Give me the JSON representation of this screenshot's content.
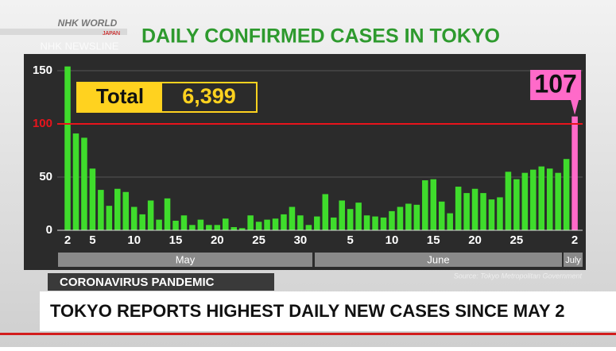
{
  "header": {
    "brand": "NHK WORLD",
    "brand_sub": "JAPAN",
    "program": "NHK NEWSLINE"
  },
  "chart_data": {
    "type": "bar",
    "title": "DAILY CONFIRMED CASES IN TOKYO",
    "categories": [
      "2",
      null,
      null,
      "5",
      null,
      null,
      null,
      null,
      "10",
      null,
      null,
      null,
      null,
      "15",
      null,
      null,
      null,
      null,
      "20",
      null,
      null,
      null,
      null,
      "25",
      null,
      null,
      null,
      null,
      "30",
      null,
      null,
      null,
      null,
      null,
      "5",
      null,
      null,
      null,
      null,
      "10",
      null,
      null,
      null,
      null,
      "15",
      null,
      null,
      null,
      null,
      "20",
      null,
      null,
      null,
      null,
      "25",
      null,
      null,
      null,
      null,
      null,
      null,
      "2"
    ],
    "values": [
      154,
      91,
      87,
      58,
      38,
      23,
      39,
      36,
      22,
      15,
      28,
      10,
      30,
      9,
      14,
      5,
      10,
      5,
      5,
      11,
      3,
      2,
      14,
      8,
      10,
      11,
      15,
      22,
      14,
      5,
      13,
      34,
      12,
      28,
      20,
      26,
      14,
      13,
      12,
      18,
      22,
      25,
      24,
      47,
      48,
      27,
      16,
      41,
      35,
      39,
      35,
      29,
      31,
      55,
      48,
      54,
      57,
      60,
      58,
      54,
      67,
      107
    ],
    "colors": [
      "#3fdc2c",
      "#3fdc2c",
      "#3fdc2c",
      "#3fdc2c",
      "#3fdc2c",
      "#3fdc2c",
      "#3fdc2c",
      "#3fdc2c",
      "#3fdc2c",
      "#3fdc2c",
      "#3fdc2c",
      "#3fdc2c",
      "#3fdc2c",
      "#3fdc2c",
      "#3fdc2c",
      "#3fdc2c",
      "#3fdc2c",
      "#3fdc2c",
      "#3fdc2c",
      "#3fdc2c",
      "#3fdc2c",
      "#3fdc2c",
      "#3fdc2c",
      "#3fdc2c",
      "#3fdc2c",
      "#3fdc2c",
      "#3fdc2c",
      "#3fdc2c",
      "#3fdc2c",
      "#3fdc2c",
      "#3fdc2c",
      "#3fdc2c",
      "#3fdc2c",
      "#3fdc2c",
      "#3fdc2c",
      "#3fdc2c",
      "#3fdc2c",
      "#3fdc2c",
      "#3fdc2c",
      "#3fdc2c",
      "#3fdc2c",
      "#3fdc2c",
      "#3fdc2c",
      "#3fdc2c",
      "#3fdc2c",
      "#3fdc2c",
      "#3fdc2c",
      "#3fdc2c",
      "#3fdc2c",
      "#3fdc2c",
      "#3fdc2c",
      "#3fdc2c",
      "#3fdc2c",
      "#3fdc2c",
      "#3fdc2c",
      "#3fdc2c",
      "#3fdc2c",
      "#3fdc2c",
      "#3fdc2c",
      "#3fdc2c",
      "#3fdc2c",
      "#ff6ac9"
    ],
    "months": [
      "May",
      "June",
      "July"
    ],
    "ylim": [
      0,
      156
    ],
    "yticks": [
      0,
      50,
      100,
      150
    ],
    "grid": true,
    "reference_line": {
      "value": 100,
      "color": "#e8141c"
    },
    "total_label": "Total",
    "total": "6,399",
    "source": "Source: Tokyo Metropolitan Government"
  },
  "lower_third": {
    "tag": "CORONAVIRUS PANDEMIC",
    "headline": "TOKYO REPORTS HIGHEST DAILY NEW CASES SINCE MAY 2"
  }
}
